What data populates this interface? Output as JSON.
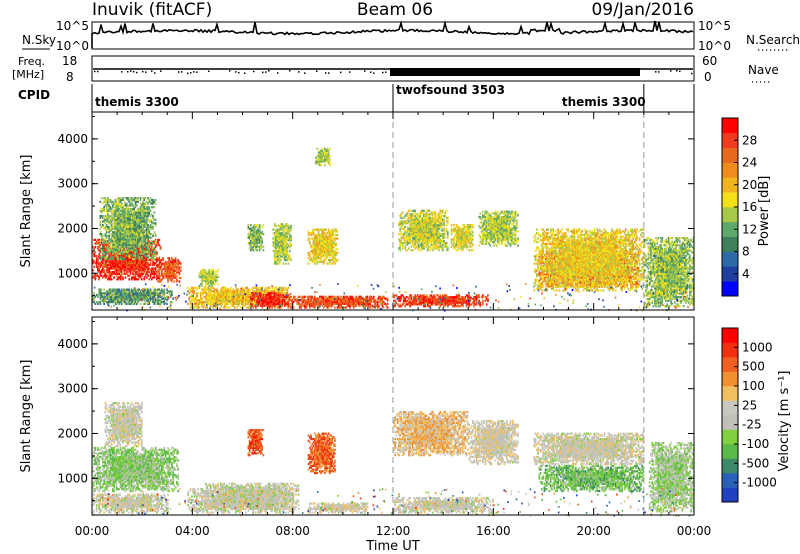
{
  "header": {
    "station": "Inuvik (fitACF)",
    "beam": "Beam 06",
    "date": "09/Jan/2016"
  },
  "top_panels": {
    "nsky_label": "N.Sky",
    "nsky_ticks": [
      "10^5",
      "10^0"
    ],
    "nsearch_label": "N.Search",
    "nsearch_ticks": [
      "10^5",
      "10^0"
    ],
    "freq_label_1": "Freq.",
    "freq_label_2": "[MHz]",
    "freq_ticks": [
      "18",
      "8"
    ],
    "nave_label": "Nave",
    "nave_ticks": [
      "60",
      "0"
    ],
    "cpid_label": "CPID",
    "cpid_modes": [
      {
        "name": "themis 3300",
        "start": 0,
        "end": 12
      },
      {
        "name": "twofsound 3503",
        "start": 12,
        "end": 22
      },
      {
        "name": "themis 3300",
        "start": 22,
        "end": 24
      }
    ]
  },
  "colorbars": {
    "power": {
      "label": "Power [dB]",
      "ticks": [
        "28",
        "24",
        "20",
        "16",
        "12",
        "8",
        "4"
      ],
      "colors": [
        "#0000ff",
        "#1e3f9e",
        "#2d6aa8",
        "#3f7f5a",
        "#5fa86b",
        "#a8c84a",
        "#f2e019",
        "#f0b41e",
        "#f08c1e",
        "#e8681e",
        "#f03c1e",
        "#ff0000"
      ]
    },
    "velocity": {
      "label": "Velocity [m s⁻¹]",
      "ticks": [
        "1000",
        "500",
        "100",
        "25",
        "-25",
        "-100",
        "-500",
        "-1000"
      ],
      "colors": [
        "#2040c0",
        "#2a60b8",
        "#3a8a6a",
        "#5cba4a",
        "#80d040",
        "#c0c0b8",
        "#c8c8c0",
        "#f0c060",
        "#f09030",
        "#f06020",
        "#f03010",
        "#ff0000"
      ]
    }
  },
  "chart_data": [
    {
      "type": "heatmap",
      "title": "Inuvik (fitACF) Beam 06 09/Jan/2016",
      "xlabel": "Time UT",
      "ylabel": "Slant Range [km]",
      "xticks": [
        "00:00",
        "04:00",
        "08:00",
        "12:00",
        "16:00",
        "20:00",
        "00:00"
      ],
      "yticks": [
        "1000",
        "2000",
        "3000",
        "4000"
      ],
      "xlim": [
        0,
        24
      ],
      "ylim": [
        180,
        4600
      ],
      "colorbar": "Power [dB]",
      "clim": [
        0,
        30
      ],
      "blobs": [
        {
          "t0": 0.0,
          "t1": 2.7,
          "r0": 850,
          "r1": 1750,
          "v": 27
        },
        {
          "t0": 0.3,
          "t1": 2.5,
          "r0": 1300,
          "r1": 2700,
          "v": 12
        },
        {
          "t0": 2.6,
          "t1": 3.5,
          "r0": 800,
          "r1": 1350,
          "v": 25
        },
        {
          "t0": 0.0,
          "t1": 3.2,
          "r0": 300,
          "r1": 650,
          "v": 10
        },
        {
          "t0": 3.8,
          "t1": 7.8,
          "r0": 220,
          "r1": 700,
          "v": 18
        },
        {
          "t0": 6.3,
          "t1": 7.8,
          "r0": 220,
          "r1": 550,
          "v": 27
        },
        {
          "t0": 7.8,
          "t1": 11.8,
          "r0": 220,
          "r1": 500,
          "v": 25
        },
        {
          "t0": 4.2,
          "t1": 5.0,
          "r0": 700,
          "r1": 1100,
          "v": 14
        },
        {
          "t0": 6.2,
          "t1": 6.8,
          "r0": 1500,
          "r1": 2100,
          "v": 12
        },
        {
          "t0": 7.2,
          "t1": 7.9,
          "r0": 1200,
          "r1": 2100,
          "v": 14
        },
        {
          "t0": 8.6,
          "t1": 9.8,
          "r0": 1200,
          "r1": 2000,
          "v": 17
        },
        {
          "t0": 8.9,
          "t1": 9.5,
          "r0": 3400,
          "r1": 3800,
          "v": 14
        },
        {
          "t0": 12.0,
          "t1": 15.8,
          "r0": 250,
          "r1": 500,
          "v": 26
        },
        {
          "t0": 12.2,
          "t1": 14.2,
          "r0": 1500,
          "r1": 2400,
          "v": 15
        },
        {
          "t0": 14.3,
          "t1": 15.2,
          "r0": 1500,
          "r1": 2100,
          "v": 16
        },
        {
          "t0": 15.4,
          "t1": 17.0,
          "r0": 1600,
          "r1": 2400,
          "v": 14
        },
        {
          "t0": 17.8,
          "t1": 21.8,
          "r0": 700,
          "r1": 1500,
          "v": 24
        },
        {
          "t0": 17.6,
          "t1": 22.0,
          "r0": 600,
          "r1": 2000,
          "v": 17
        },
        {
          "t0": 22.0,
          "t1": 24.0,
          "r0": 250,
          "r1": 1800,
          "v": 13
        }
      ]
    },
    {
      "type": "heatmap",
      "title": "",
      "xlabel": "Time UT",
      "ylabel": "Slant Range [km]",
      "xticks": [
        "00:00",
        "04:00",
        "08:00",
        "12:00",
        "16:00",
        "20:00",
        "00:00"
      ],
      "yticks": [
        "1000",
        "2000",
        "3000",
        "4000"
      ],
      "xlim": [
        0,
        24
      ],
      "ylim": [
        180,
        4600
      ],
      "colorbar": "Velocity [m s⁻¹]",
      "clim": [
        -1200,
        1200
      ],
      "blobs": [
        {
          "t0": 0.0,
          "t1": 3.4,
          "r0": 700,
          "r1": 1700,
          "v": -300
        },
        {
          "t0": 0.5,
          "t1": 2.0,
          "r0": 1700,
          "r1": 2700,
          "v": 10
        },
        {
          "t0": 0.0,
          "t1": 3.0,
          "r0": 220,
          "r1": 650,
          "v": 30
        },
        {
          "t0": 3.8,
          "t1": 8.0,
          "r0": 220,
          "r1": 750,
          "v": 15
        },
        {
          "t0": 4.5,
          "t1": 8.2,
          "r0": 300,
          "r1": 900,
          "v": 0
        },
        {
          "t0": 6.2,
          "t1": 6.8,
          "r0": 1500,
          "r1": 2100,
          "v": 800
        },
        {
          "t0": 8.6,
          "t1": 9.7,
          "r0": 1100,
          "r1": 2000,
          "v": 700
        },
        {
          "t0": 8.6,
          "t1": 11.0,
          "r0": 220,
          "r1": 450,
          "v": 60
        },
        {
          "t0": 12.0,
          "t1": 15.0,
          "r0": 1500,
          "r1": 2500,
          "v": 300
        },
        {
          "t0": 15.0,
          "t1": 17.0,
          "r0": 1300,
          "r1": 2300,
          "v": 80
        },
        {
          "t0": 12.0,
          "t1": 16.0,
          "r0": 220,
          "r1": 550,
          "v": 40
        },
        {
          "t0": 17.8,
          "t1": 22.0,
          "r0": 700,
          "r1": 1300,
          "v": -400
        },
        {
          "t0": 17.6,
          "t1": 22.0,
          "r0": 1300,
          "r1": 2000,
          "v": 30
        },
        {
          "t0": 22.2,
          "t1": 24.0,
          "r0": 250,
          "r1": 1800,
          "v": -200
        }
      ]
    }
  ]
}
